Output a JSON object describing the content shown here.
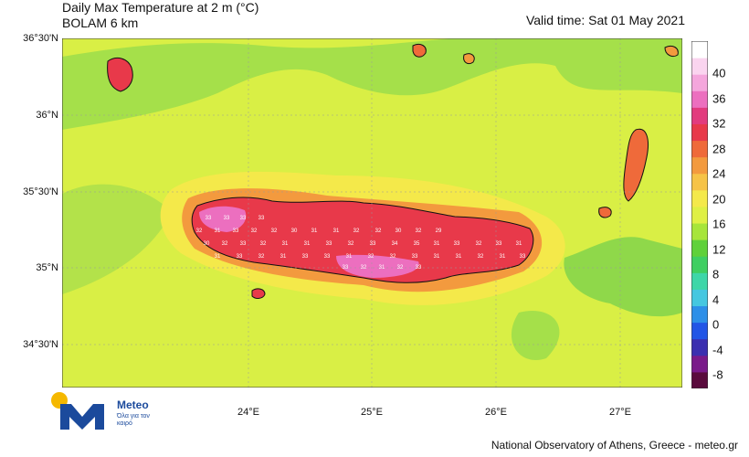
{
  "header": {
    "title_line1": "Daily Max Temperature at 2 m (°C)",
    "title_line2": "BOLAM 6 km",
    "valid_time": "Valid time: Sat 01 May 2021"
  },
  "axes": {
    "lat_labels": [
      "36°30'N",
      "36°N",
      "35°30'N",
      "35°N",
      "34°30'N"
    ],
    "lon_labels": [
      "24°E",
      "25°E",
      "26°E",
      "27°E"
    ]
  },
  "colorbar": {
    "labels": [
      "40",
      "36",
      "32",
      "28",
      "24",
      "20",
      "16",
      "12",
      "8",
      "4",
      "0",
      "-4",
      "-8"
    ],
    "colors": [
      "#5a0b3d",
      "#7a1a8a",
      "#3b2fb0",
      "#2255e6",
      "#2d8fe8",
      "#45c7e0",
      "#3ed6a8",
      "#3fcf62",
      "#5fd13a",
      "#a7e53a",
      "#dff044",
      "#f4e94a",
      "#f6c347",
      "#f39a3e",
      "#ef6a3a",
      "#e8394a",
      "#e23b7e",
      "#ec6fbf",
      "#f4a6dc",
      "#fad4ef",
      "#ffffff"
    ]
  },
  "map_labels": {
    "values": [
      "33",
      "33",
      "33",
      "33",
      "32",
      "31",
      "33",
      "32",
      "32",
      "30",
      "31",
      "31",
      "32",
      "32",
      "30",
      "32",
      "29",
      "30",
      "32",
      "33",
      "32",
      "31",
      "31",
      "33",
      "32",
      "33",
      "34",
      "35",
      "31",
      "33",
      "32",
      "33",
      "31",
      "31",
      "33",
      "32",
      "31",
      "33",
      "33",
      "31",
      "32",
      "32",
      "33",
      "31",
      "31",
      "32",
      "31",
      "33",
      "33",
      "32",
      "31",
      "32",
      "33",
      "31"
    ]
  },
  "logo": {
    "brand": "Meteo",
    "tagline": "Όλα για τον καιρό"
  },
  "footer": {
    "credit": "National Observatory of Athens, Greece - meteo.gr"
  }
}
